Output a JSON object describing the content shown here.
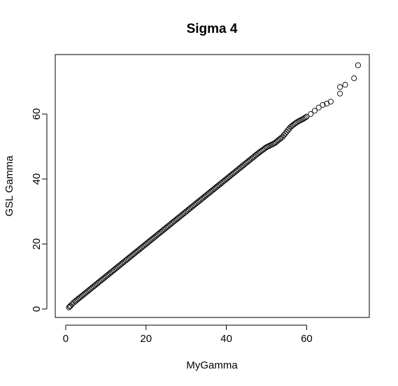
{
  "chart_data": {
    "type": "scatter",
    "title": "Sigma 4",
    "xlabel": "MyGamma",
    "ylabel": "GSL Gamma",
    "xlim": [
      -2.6,
      75.6
    ],
    "ylim": [
      -2.6,
      78.3
    ],
    "x_ticks": [
      0,
      20,
      40,
      60
    ],
    "y_ticks": [
      0,
      20,
      40,
      60
    ],
    "grid": false,
    "marker": "open-circle",
    "series": [
      {
        "x": [
          0.8,
          1.2,
          2,
          3,
          5,
          8,
          10,
          15,
          20,
          25,
          30,
          35,
          40,
          45,
          48,
          50,
          52,
          54,
          55,
          56,
          57,
          58,
          59,
          60,
          61,
          62,
          63,
          64,
          65,
          66,
          68.3,
          68.3,
          69.6,
          71.8,
          72.8
        ],
        "y": [
          0.5,
          1,
          2,
          3,
          5,
          8,
          10,
          15,
          20,
          25,
          30,
          35,
          40,
          45,
          48,
          49.8,
          51,
          53,
          54.5,
          56,
          57,
          57.8,
          58.4,
          59.2,
          60,
          61,
          62,
          62.8,
          63.2,
          63.8,
          66.3,
          68.3,
          69,
          71,
          75
        ]
      }
    ]
  }
}
